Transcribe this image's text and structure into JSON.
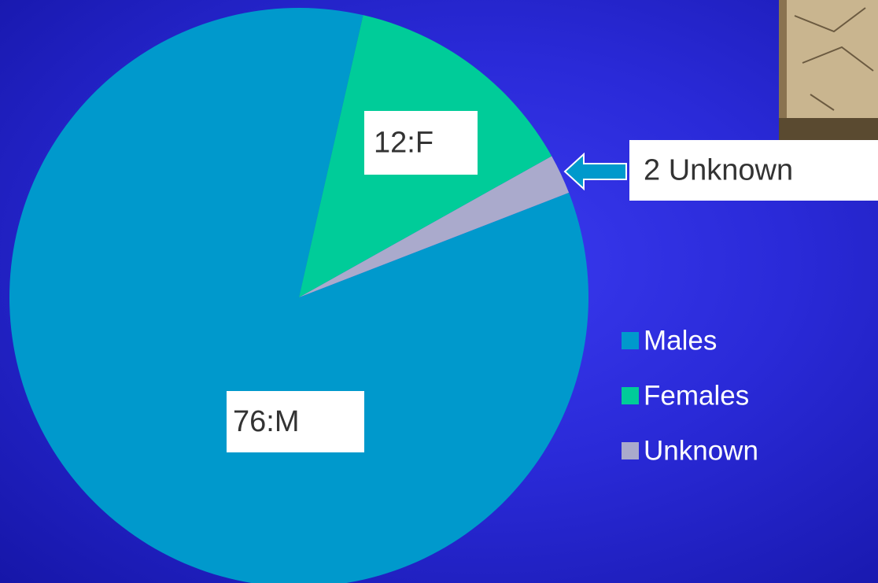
{
  "chart_data": {
    "type": "pie",
    "categories": [
      "Males",
      "Females",
      "Unknown"
    ],
    "values": [
      76,
      12,
      2
    ],
    "value_labels": [
      "76:M",
      "12:F",
      "2 Unknown"
    ],
    "colors": [
      "#0099cc",
      "#00cc99",
      "#aaaacc"
    ],
    "legend": "right"
  }
}
